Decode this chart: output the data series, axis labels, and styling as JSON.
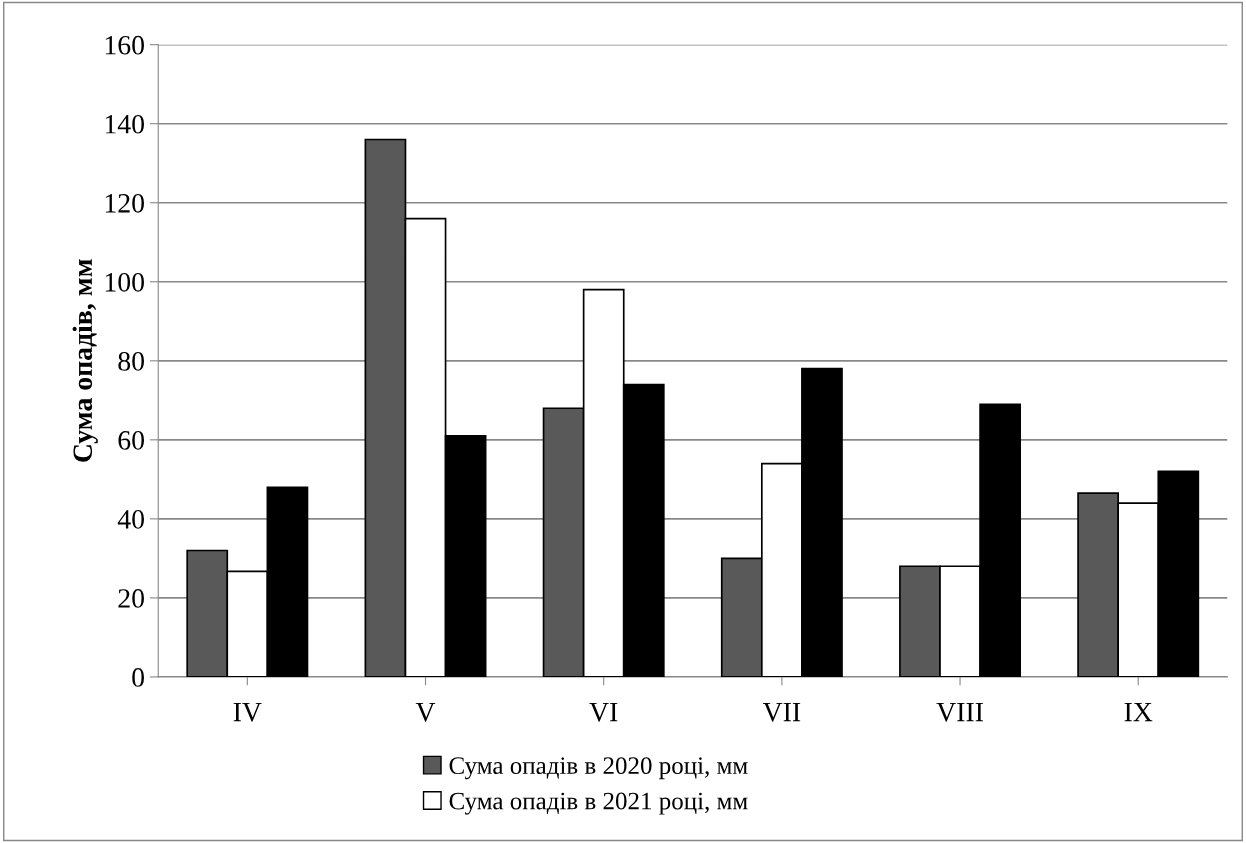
{
  "chart_data": {
    "type": "bar",
    "ylabel": "Сума опадів, мм",
    "categories": [
      "IV",
      "V",
      "VI",
      "VII",
      "VIII",
      "IX"
    ],
    "series": [
      {
        "name": "Сума опадів в 2020 році, мм",
        "color": "#595959",
        "values": [
          32,
          136,
          68,
          30,
          28,
          46.5
        ]
      },
      {
        "name": "Сума опадів в 2021 році, мм",
        "color": "#ffffff",
        "values": [
          26.7,
          116,
          98,
          54,
          28,
          44
        ]
      },
      {
        "color": "#000000",
        "values": [
          48,
          61,
          74,
          78,
          69,
          52
        ]
      }
    ],
    "ylim": [
      0,
      160
    ],
    "yticks": [
      0,
      20,
      40,
      60,
      80,
      100,
      120,
      140,
      160
    ],
    "grid": "y",
    "legend": "bottom"
  }
}
